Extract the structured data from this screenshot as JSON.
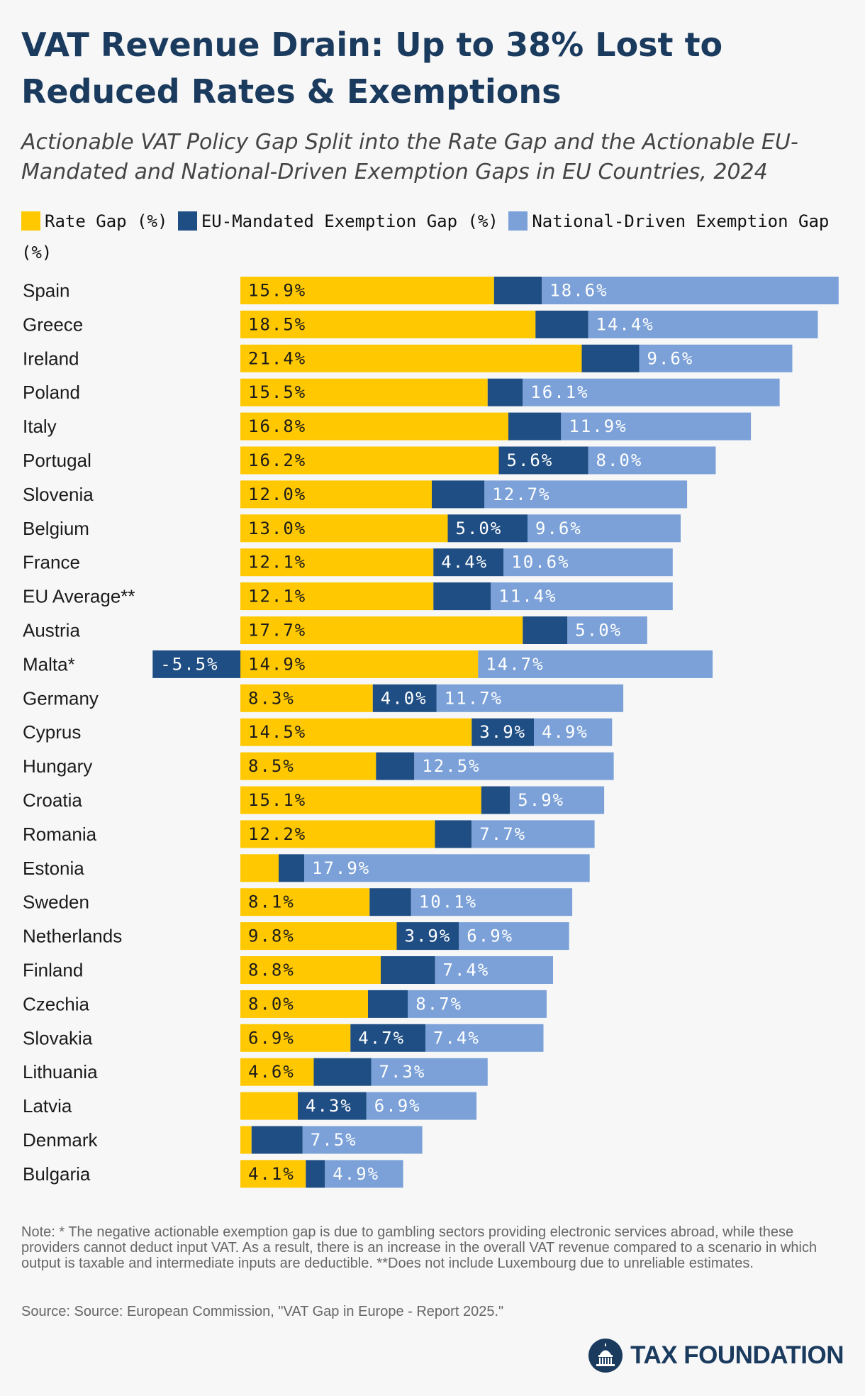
{
  "title": "VAT Revenue Drain: Up to 38% Lost to Reduced Rates & Exemptions",
  "subtitle": "Actionable VAT Policy Gap Split into the Rate Gap and the Actionable EU-Mandated and National-Driven Exemption Gaps in EU Countries, 2024",
  "legend": [
    {
      "label": "Rate Gap (%)",
      "color": "#ffc800"
    },
    {
      "label": "EU-Mandated Exemption Gap (%)",
      "color": "#1f4e84"
    },
    {
      "label": "National-Driven Exemption Gap (%)",
      "color": "#7ba1d8"
    }
  ],
  "chart_data": {
    "type": "bar",
    "orientation": "horizontal",
    "stacked": true,
    "categories": [
      "Spain",
      "Greece",
      "Ireland",
      "Poland",
      "Italy",
      "Portugal",
      "Slovenia",
      "Belgium",
      "France",
      "EU Average**",
      "Austria",
      "Malta*",
      "Germany",
      "Cyprus",
      "Hungary",
      "Croatia",
      "Romania",
      "Estonia",
      "Sweden",
      "Netherlands",
      "Finland",
      "Czechia",
      "Slovakia",
      "Lithuania",
      "Latvia",
      "Denmark",
      "Bulgaria"
    ],
    "series": [
      {
        "name": "Rate Gap (%)",
        "color": "#ffc800",
        "label_color": "#1b1b1b",
        "values": [
          15.9,
          18.5,
          21.4,
          15.5,
          16.8,
          16.2,
          12.0,
          13.0,
          12.1,
          12.1,
          17.7,
          14.9,
          8.3,
          14.5,
          8.5,
          15.1,
          12.2,
          2.4,
          8.1,
          9.8,
          8.8,
          8.0,
          6.9,
          4.6,
          3.6,
          0.7,
          4.1
        ],
        "labels": [
          "15.9%",
          "18.5%",
          "21.4%",
          "15.5%",
          "16.8%",
          "16.2%",
          "12.0%",
          "13.0%",
          "12.1%",
          "12.1%",
          "17.7%",
          "14.9%",
          "8.3%",
          "14.5%",
          "8.5%",
          "15.1%",
          "12.2%",
          "",
          "8.1%",
          "9.8%",
          "8.8%",
          "8.0%",
          "6.9%",
          "4.6%",
          "",
          "",
          "4.1%"
        ]
      },
      {
        "name": "EU-Mandated Exemption Gap (%)",
        "color": "#1f4e84",
        "label_color": "#ffffff",
        "values": [
          3.0,
          3.3,
          3.6,
          2.2,
          3.3,
          5.6,
          3.3,
          5.0,
          4.4,
          3.6,
          2.8,
          -5.5,
          4.0,
          3.9,
          2.4,
          1.8,
          2.3,
          1.6,
          2.6,
          3.9,
          3.4,
          2.5,
          4.7,
          3.6,
          4.3,
          3.2,
          1.2
        ],
        "labels": [
          "",
          "",
          "",
          "",
          "",
          "5.6%",
          "",
          "5.0%",
          "4.4%",
          "",
          "",
          "-5.5%",
          "4.0%",
          "3.9%",
          "",
          "",
          "",
          "",
          "",
          "3.9%",
          "",
          "",
          "4.7%",
          "",
          "4.3%",
          "",
          ""
        ]
      },
      {
        "name": "National-Driven Exemption Gap (%)",
        "color": "#7ba1d8",
        "label_color": "#ffffff",
        "values": [
          18.6,
          14.4,
          9.6,
          16.1,
          11.9,
          8.0,
          12.7,
          9.6,
          10.6,
          11.4,
          5.0,
          14.7,
          11.7,
          4.9,
          12.5,
          5.9,
          7.7,
          17.9,
          10.1,
          6.9,
          7.4,
          8.7,
          7.4,
          7.3,
          6.9,
          7.5,
          4.9
        ],
        "labels": [
          "18.6%",
          "14.4%",
          "9.6%",
          "16.1%",
          "11.9%",
          "8.0%",
          "12.7%",
          "9.6%",
          "10.6%",
          "11.4%",
          "5.0%",
          "14.7%",
          "11.7%",
          "4.9%",
          "12.5%",
          "5.9%",
          "7.7%",
          "17.9%",
          "10.1%",
          "6.9%",
          "7.4%",
          "8.7%",
          "7.4%",
          "7.3%",
          "6.9%",
          "7.5%",
          "4.9%"
        ]
      }
    ],
    "xlim": [
      -5.5,
      37.5
    ],
    "grid": false,
    "legend_position": "top"
  },
  "note": "Note: * The negative actionable exemption gap is due to gambling sectors providing electronic services abroad, while these providers cannot deduct input VAT. As a result, there is an increase in the overall VAT revenue compared to a scenario in which output is taxable and intermediate inputs are deductible. **Does not include Luxembourg due to unreliable estimates.",
  "source": "Source: Source: European Commission, \"VAT Gap in Europe - Report 2025.\"",
  "brand": {
    "name": "TAX FOUNDATION",
    "logo_icon": "capitol-dome-icon"
  }
}
